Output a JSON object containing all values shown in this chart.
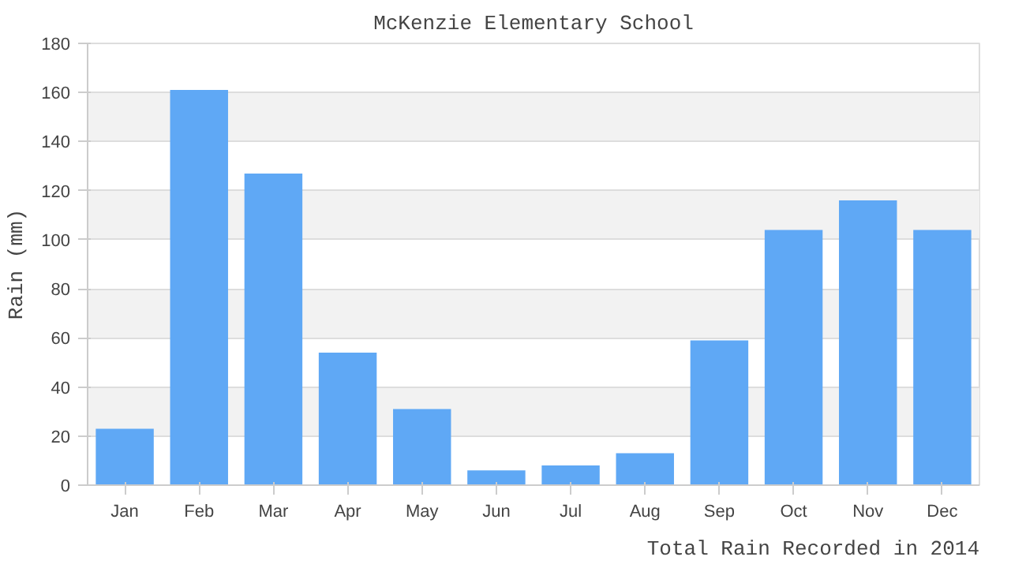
{
  "chart_data": {
    "type": "bar",
    "title": "McKenzie Elementary School",
    "ylabel": "Rain (mm)",
    "categories": [
      "Jan",
      "Feb",
      "Mar",
      "Apr",
      "May",
      "Jun",
      "Jul",
      "Aug",
      "Sep",
      "Oct",
      "Nov",
      "Dec"
    ],
    "values": [
      23,
      161,
      127,
      54,
      31,
      6,
      8,
      13,
      59,
      104,
      116,
      104
    ],
    "color": "#5fa8f5",
    "ylim": [
      0,
      180
    ],
    "yticks": [
      0,
      20,
      40,
      60,
      80,
      100,
      120,
      140,
      160,
      180
    ],
    "grid": "y",
    "annotations": [
      "Total Rain Recorded in 2014"
    ]
  }
}
